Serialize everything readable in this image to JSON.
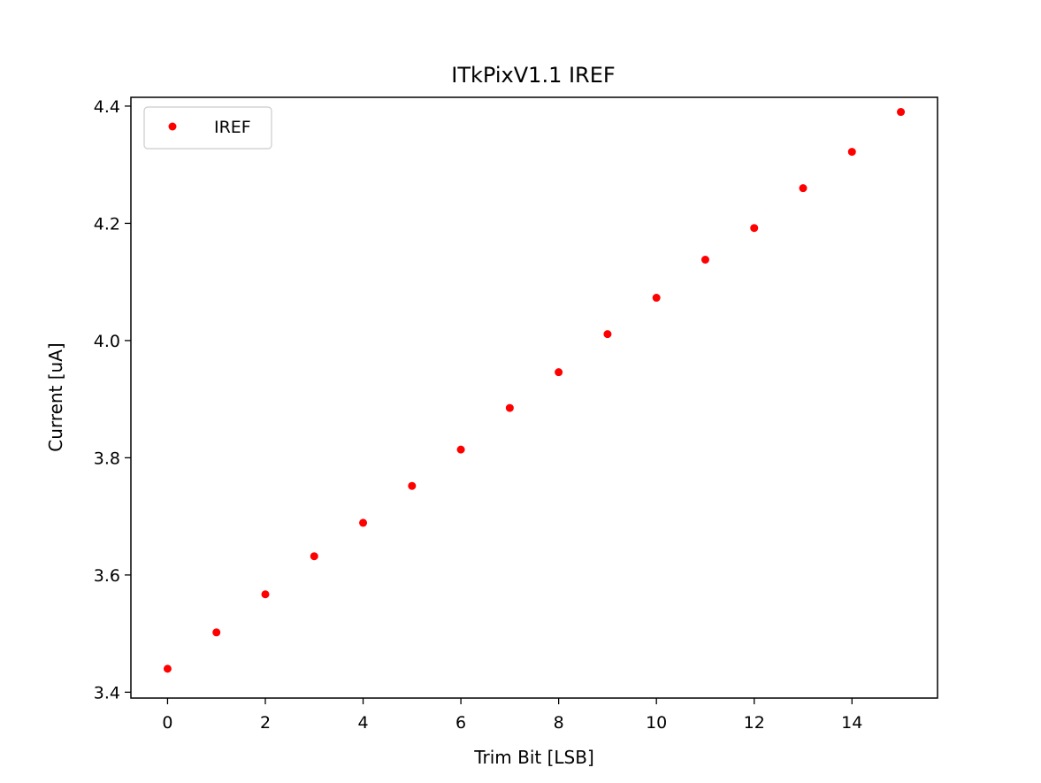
{
  "chart_data": {
    "type": "scatter",
    "title": "ITkPixV1.1 IREF",
    "xlabel": "Trim Bit [LSB]",
    "ylabel": "Current [uA]",
    "xlim": [
      -0.75,
      15.75
    ],
    "ylim": [
      3.39,
      4.415
    ],
    "xticks": [
      0,
      2,
      4,
      6,
      8,
      10,
      12,
      14
    ],
    "xtick_labels": [
      "0",
      "2",
      "4",
      "6",
      "8",
      "10",
      "12",
      "14"
    ],
    "yticks": [
      3.4,
      3.6,
      3.8,
      4.0,
      4.2,
      4.4
    ],
    "ytick_labels": [
      "3.4",
      "3.6",
      "3.8",
      "4.0",
      "4.2",
      "4.4"
    ],
    "grid": false,
    "legend_position": "top-left",
    "series": [
      {
        "name": "IREF",
        "color": "#ff0000",
        "marker": "dot",
        "x": [
          0,
          1,
          2,
          3,
          4,
          5,
          6,
          7,
          8,
          9,
          10,
          11,
          12,
          13,
          14,
          15
        ],
        "y": [
          3.44,
          3.502,
          3.567,
          3.632,
          3.689,
          3.752,
          3.814,
          3.885,
          3.946,
          4.011,
          4.073,
          4.138,
          4.192,
          4.26,
          4.322,
          4.39
        ]
      }
    ]
  }
}
